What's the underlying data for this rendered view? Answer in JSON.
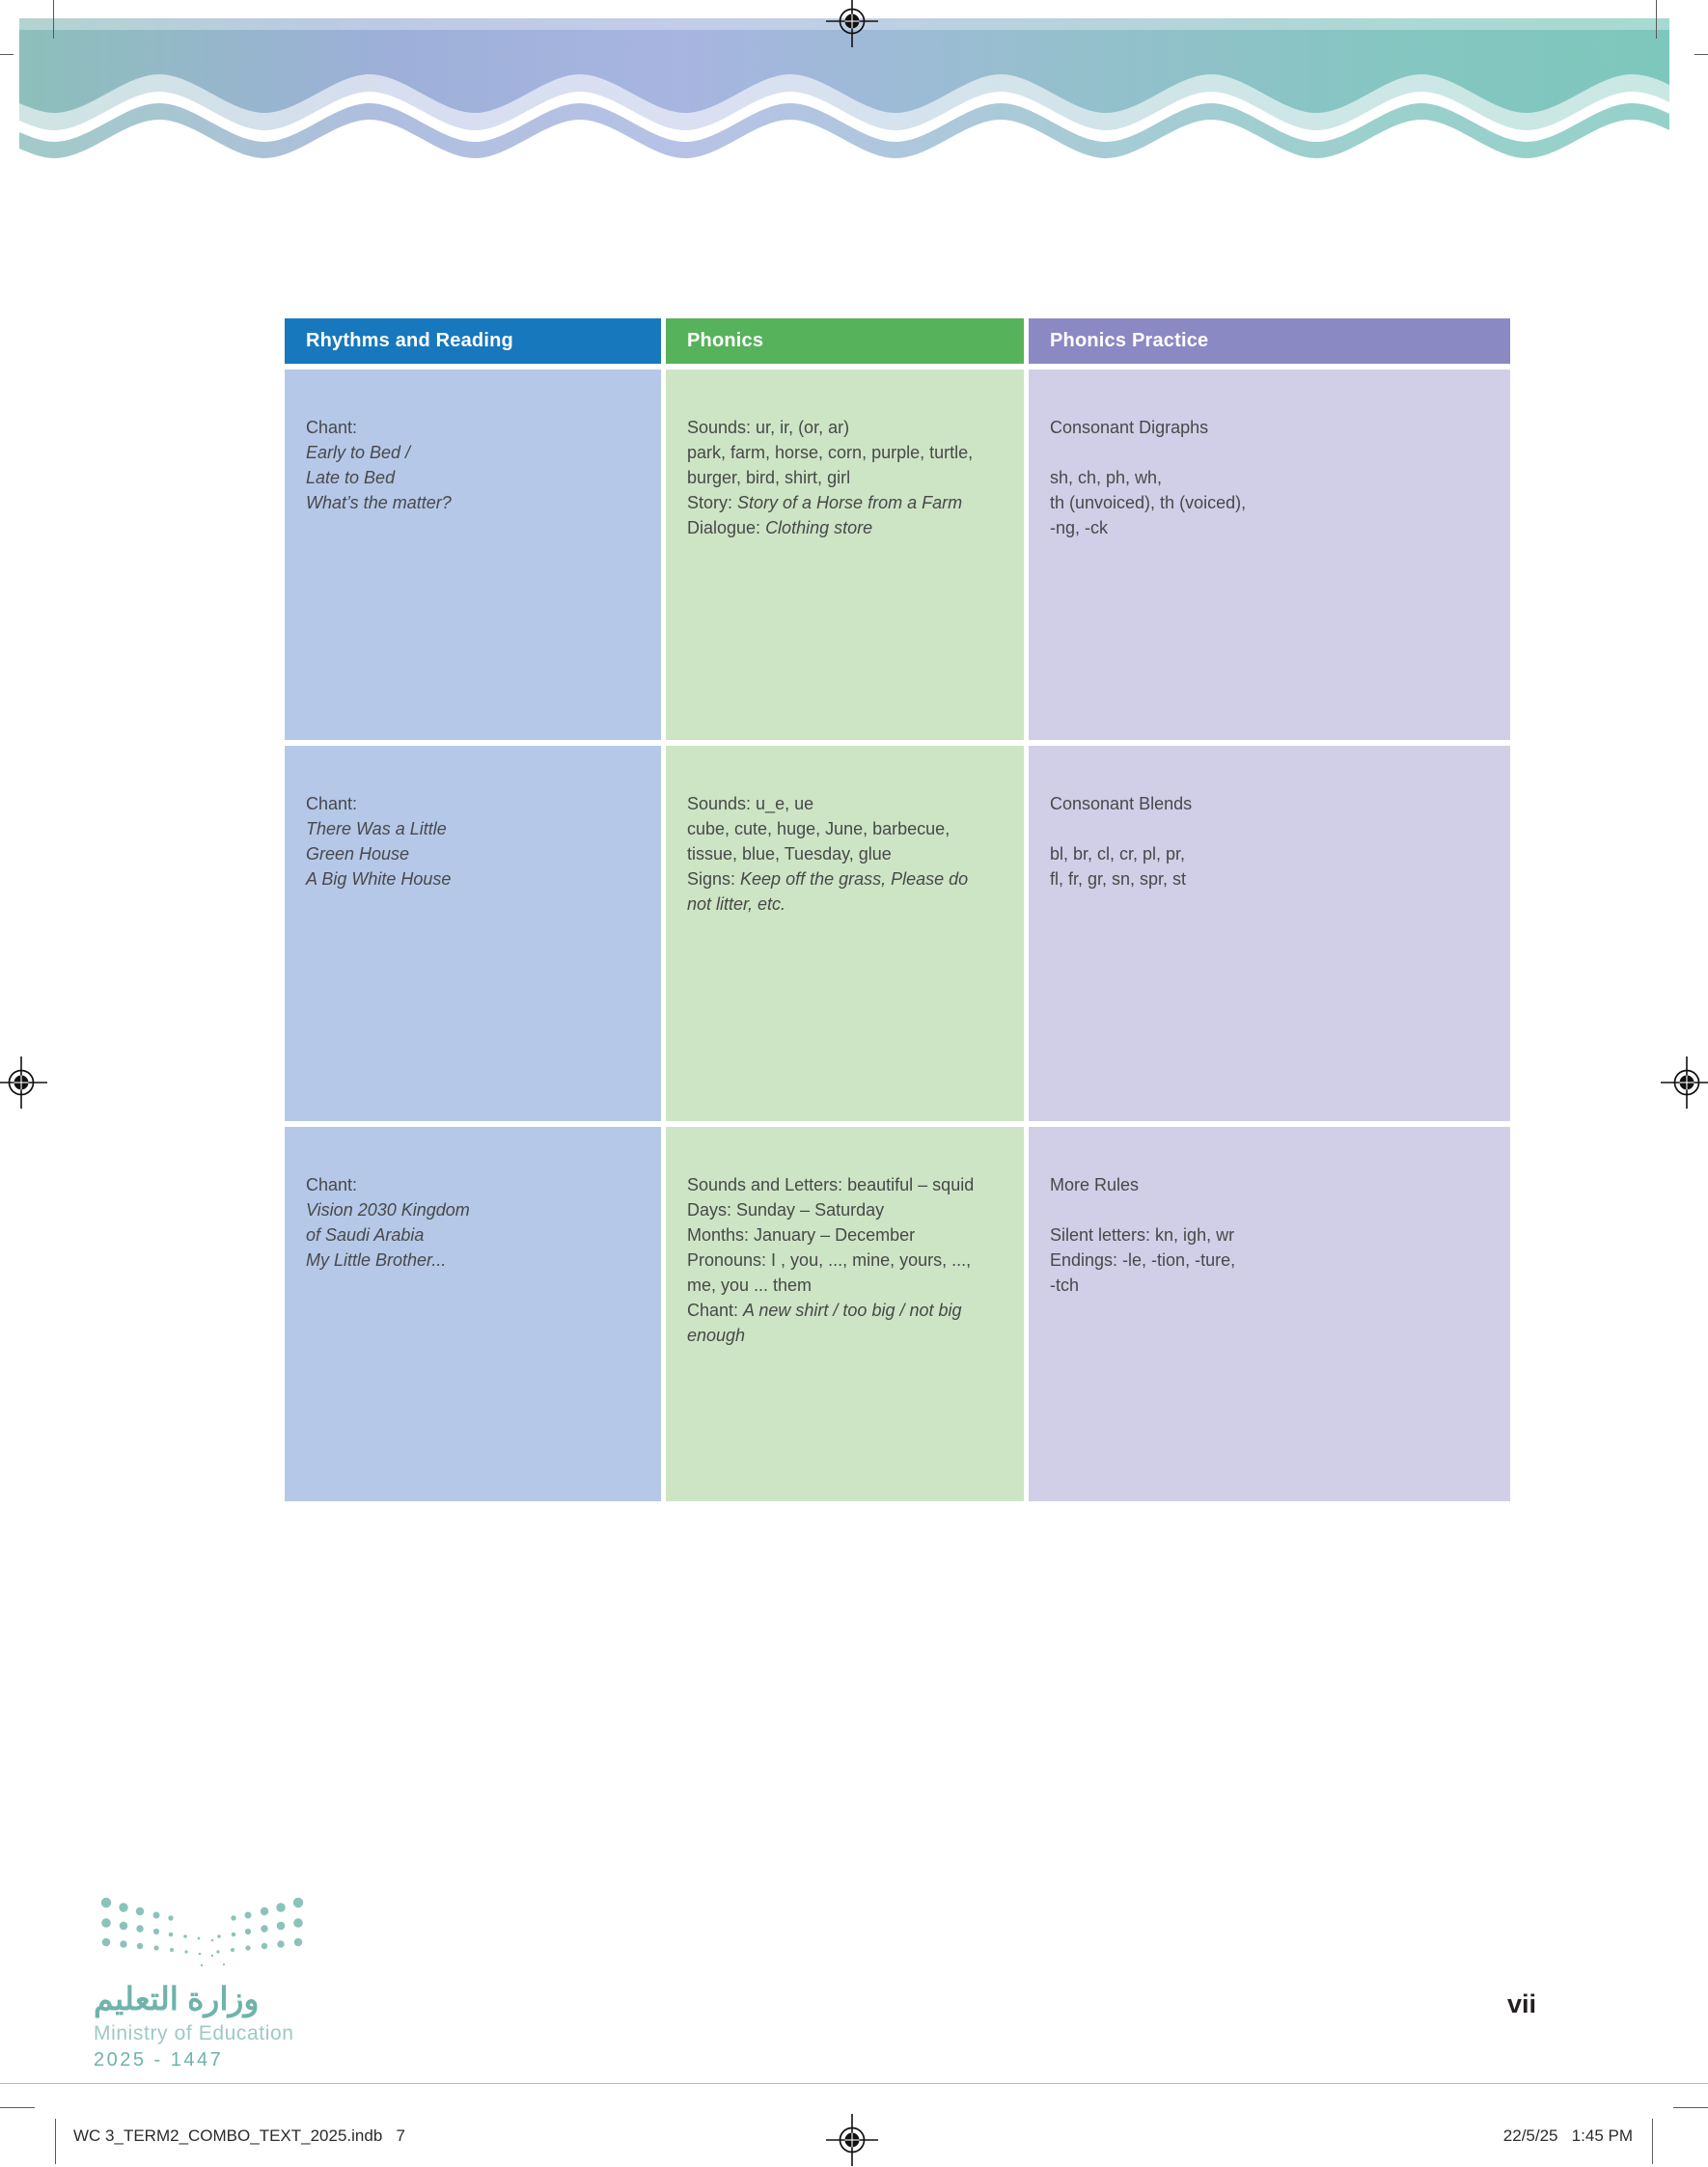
{
  "colors": {
    "header_blue": "#1878be",
    "header_green": "#57b25c",
    "header_purple": "#8b89c4",
    "cell_blue": "#b5c8e8",
    "cell_green": "#cde5c4",
    "cell_purple": "#d1cfe7",
    "body_text": "#48484a",
    "logo_teal": "#6fb3ab",
    "logo_teal_light": "#9ccac3"
  },
  "table": {
    "headers": [
      {
        "label": "Rhythms and Reading"
      },
      {
        "label": "Phonics"
      },
      {
        "label": "Phonics Practice"
      }
    ],
    "rows": [
      {
        "cells": [
          {
            "lines": [
              [
                {
                  "t": "Chant:"
                }
              ],
              [
                {
                  "t": "Early to Bed /",
                  "i": true
                }
              ],
              [
                {
                  "t": "Late to Bed",
                  "i": true
                }
              ],
              [
                {
                  "t": "What’s the matter?",
                  "i": true
                }
              ]
            ]
          },
          {
            "lines": [
              [
                {
                  "t": "Sounds: ur, ir, (or, ar)"
                }
              ],
              [
                {
                  "t": "park, farm, horse, corn, purple, turtle,"
                }
              ],
              [
                {
                  "t": "burger, bird, shirt, girl"
                }
              ],
              [
                {
                  "t": "Story: "
                },
                {
                  "t": "Story of a Horse from a Farm",
                  "i": true
                }
              ],
              [
                {
                  "t": "Dialogue: "
                },
                {
                  "t": "Clothing store",
                  "i": true
                }
              ]
            ]
          },
          {
            "lines": [
              [
                {
                  "t": "Consonant Digraphs"
                }
              ],
              [],
              [
                {
                  "t": "sh, ch, ph, wh,"
                }
              ],
              [
                {
                  "t": "th (unvoiced), th (voiced),"
                }
              ],
              [
                {
                  "t": "-ng, -ck"
                }
              ]
            ]
          }
        ]
      },
      {
        "cells": [
          {
            "lines": [
              [
                {
                  "t": "Chant:"
                }
              ],
              [
                {
                  "t": "There Was a Little",
                  "i": true
                }
              ],
              [
                {
                  "t": "Green House",
                  "i": true
                }
              ],
              [
                {
                  "t": "A Big White House",
                  "i": true
                }
              ]
            ]
          },
          {
            "lines": [
              [
                {
                  "t": "Sounds: u_e, ue"
                }
              ],
              [
                {
                  "t": "cube, cute, huge, June, barbecue,"
                }
              ],
              [
                {
                  "t": "tissue, blue, Tuesday, glue"
                }
              ],
              [
                {
                  "t": "Signs: "
                },
                {
                  "t": "Keep off the grass, Please do",
                  "i": true
                }
              ],
              [
                {
                  "t": "not litter, etc.",
                  "i": true
                }
              ]
            ]
          },
          {
            "lines": [
              [
                {
                  "t": "Consonant Blends"
                }
              ],
              [],
              [
                {
                  "t": "bl, br, cl, cr, pl, pr,"
                }
              ],
              [
                {
                  "t": "fl, fr, gr, sn, spr, st"
                }
              ]
            ]
          }
        ]
      },
      {
        "cells": [
          {
            "lines": [
              [
                {
                  "t": "Chant:"
                }
              ],
              [
                {
                  "t": "Vision 2030 Kingdom",
                  "i": true
                }
              ],
              [
                {
                  "t": "of Saudi Arabia",
                  "i": true
                }
              ],
              [
                {
                  "t": "My Little Brother...",
                  "i": true
                }
              ]
            ]
          },
          {
            "lines": [
              [
                {
                  "t": "Sounds and Letters: beautiful – squid"
                }
              ],
              [
                {
                  "t": "Days: Sunday – Saturday"
                }
              ],
              [
                {
                  "t": "Months: January – December"
                }
              ],
              [
                {
                  "t": "Pronouns: I , you, ..., mine, yours, ...,"
                }
              ],
              [
                {
                  "t": "me, you ... them"
                }
              ],
              [
                {
                  "t": "Chant: "
                },
                {
                  "t": "A new shirt / too big / not big",
                  "i": true
                }
              ],
              [
                {
                  "t": "enough",
                  "i": true
                }
              ]
            ]
          },
          {
            "lines": [
              [
                {
                  "t": "More Rules"
                }
              ],
              [],
              [
                {
                  "t": "Silent letters: kn, igh, wr"
                }
              ],
              [
                {
                  "t": "Endings: -le, -tion, -ture,"
                }
              ],
              [
                {
                  "t": "-tch"
                }
              ]
            ]
          }
        ]
      }
    ]
  },
  "logo": {
    "arabic": "وزارة التعليم",
    "english": "Ministry of Education",
    "years": "2025 - 1447"
  },
  "page_number": "vii",
  "print_footer": {
    "left_text": "WC 3_TERM2_COMBO_TEXT_2025.indb   7",
    "right_text": "22/5/25   1:45 PM"
  }
}
